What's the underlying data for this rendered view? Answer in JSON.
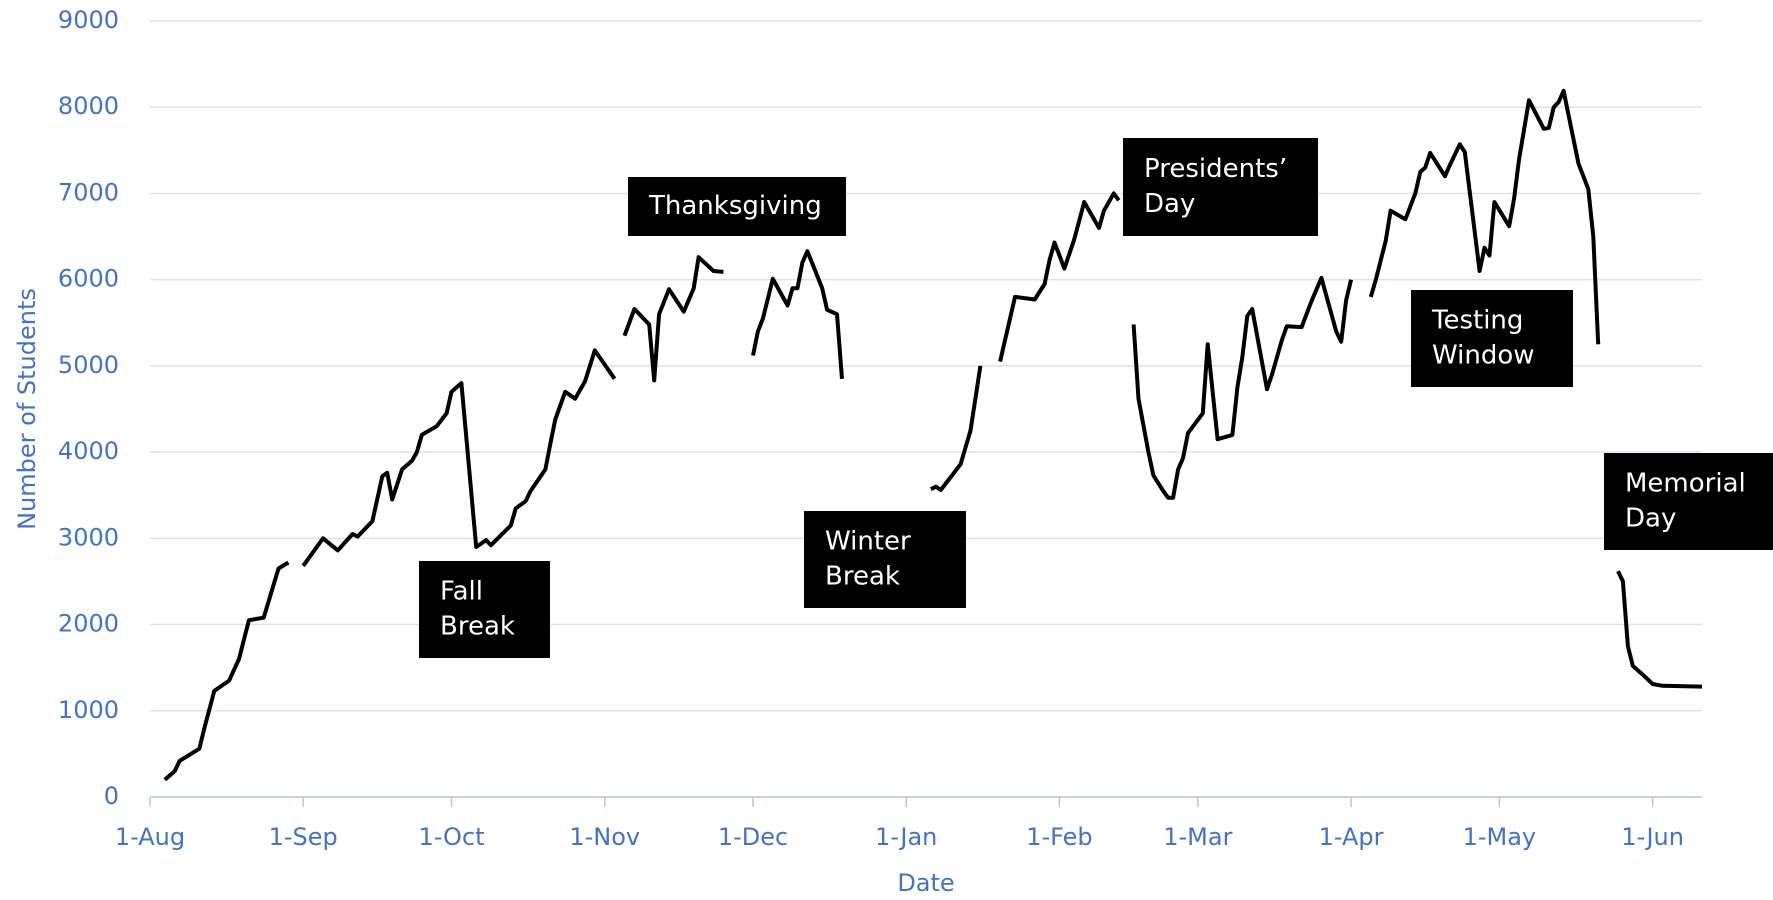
{
  "chart_data": {
    "type": "line",
    "x_label": "Date",
    "y_label": "Number of Students",
    "xlim": [
      "1-Aug",
      "11-Jun"
    ],
    "xticks": [
      "1-Aug",
      "1-Sep",
      "1-Oct",
      "1-Nov",
      "1-Dec",
      "1-Jan",
      "1-Feb",
      "1-Mar",
      "1-Apr",
      "1-May",
      "1-Jun"
    ],
    "ylim": [
      0,
      9000
    ],
    "yticks": [
      0,
      1000,
      2000,
      3000,
      4000,
      5000,
      6000,
      7000,
      8000,
      9000
    ],
    "grid": true,
    "x": [
      "4-Aug",
      "6-Aug",
      "7-Aug",
      "11-Aug",
      "12-Aug",
      "14-Aug",
      "17-Aug",
      "19-Aug",
      "21-Aug",
      "24-Aug",
      "27-Aug",
      "29-Aug",
      null,
      "1-Sep",
      "4-Sep",
      "5-Sep",
      "8-Sep",
      "11-Sep",
      "12-Sep",
      "15-Sep",
      "17-Sep",
      "18-Sep",
      "19-Sep",
      "21-Sep",
      "23-Sep",
      "24-Sep",
      "25-Sep",
      "28-Sep",
      "30-Sep",
      "1-Oct",
      "3-Oct",
      "6-Oct",
      "8-Oct",
      "9-Oct",
      "13-Oct",
      "14-Oct",
      "16-Oct",
      "17-Oct",
      "20-Oct",
      "21-Oct",
      "22-Oct",
      "24-Oct",
      "26-Oct",
      "28-Oct",
      "30-Oct",
      "3-Nov",
      null,
      "5-Nov",
      "7-Nov",
      "10-Nov",
      "11-Nov",
      "12-Nov",
      "14-Nov",
      "17-Nov",
      "19-Nov",
      "20-Nov",
      "23-Nov",
      "25-Nov",
      null,
      "1-Dec",
      "2-Dec",
      "3-Dec",
      "5-Dec",
      "8-Dec",
      "9-Dec",
      "10-Dec",
      "11-Dec",
      "12-Dec",
      "15-Dec",
      "16-Dec",
      "18-Dec",
      "19-Dec",
      null,
      "6-Jan",
      "7-Jan",
      "8-Jan",
      "12-Jan",
      "14-Jan",
      "15-Jan",
      "16-Jan",
      null,
      "20-Jan",
      "23-Jan",
      "27-Jan",
      "29-Jan",
      "30-Jan",
      "31-Jan",
      "2-Feb",
      "4-Feb",
      "6-Feb",
      "9-Feb",
      "10-Feb",
      "12-Feb",
      "13-Feb",
      null,
      "16-Feb",
      "17-Feb",
      "19-Feb",
      "20-Feb",
      "22-Feb",
      "23-Feb",
      "24-Feb",
      "25-Feb",
      "26-Feb",
      "27-Feb",
      "2-Mar",
      "3-Mar",
      "5-Mar",
      "8-Mar",
      "9-Mar",
      "10-Mar",
      "11-Mar",
      "12-Mar",
      "15-Mar",
      "16-Mar",
      "18-Mar",
      "19-Mar",
      "22-Mar",
      "24-Mar",
      "26-Mar",
      "29-Mar",
      "30-Mar",
      "31-Mar",
      "1-Apr",
      null,
      "5-Apr",
      "6-Apr",
      "8-Apr",
      "9-Apr",
      "12-Apr",
      "14-Apr",
      "15-Apr",
      "16-Apr",
      "17-Apr",
      "20-Apr",
      "21-Apr",
      "23-Apr",
      "24-Apr",
      "27-Apr",
      "28-Apr",
      "29-Apr",
      "30-Apr",
      "3-May",
      "4-May",
      "5-May",
      "7-May",
      "10-May",
      "11-May",
      "12-May",
      "13-May",
      "14-May",
      "17-May",
      "19-May",
      "20-May",
      "21-May",
      null,
      "25-May",
      "26-May",
      "27-May",
      "28-May",
      "30-May",
      "1-Jun",
      "3-Jun",
      "11-Jun"
    ],
    "series": [
      {
        "name": "Students",
        "color": "#000000",
        "values": [
          200,
          300,
          420,
          560,
          800,
          1230,
          1350,
          1600,
          2050,
          2080,
          2650,
          2720,
          null,
          2680,
          2920,
          3000,
          2860,
          3050,
          3020,
          3200,
          3720,
          3760,
          3450,
          3800,
          3900,
          4000,
          4200,
          4300,
          4450,
          4700,
          4800,
          2900,
          2980,
          2920,
          3150,
          3350,
          3430,
          3550,
          3800,
          4100,
          4380,
          4700,
          4620,
          4820,
          5180,
          4850,
          null,
          5350,
          5660,
          5480,
          4830,
          5600,
          5890,
          5630,
          5900,
          6260,
          6100,
          6090,
          null,
          5120,
          5400,
          5550,
          6010,
          5700,
          5900,
          5900,
          6200,
          6330,
          5900,
          5650,
          5600,
          4850,
          null,
          3570,
          3600,
          3560,
          3860,
          4250,
          4620,
          5000,
          null,
          5050,
          5800,
          5770,
          5950,
          6230,
          6430,
          6130,
          6470,
          6900,
          6600,
          6800,
          7000,
          6920,
          null,
          5480,
          4620,
          4000,
          3730,
          3550,
          3470,
          3470,
          3800,
          3930,
          4220,
          4450,
          5250,
          4150,
          4200,
          4750,
          5100,
          5580,
          5660,
          4730,
          4900,
          5300,
          5460,
          5450,
          5750,
          6020,
          5400,
          5280,
          5760,
          6000,
          null,
          5800,
          6000,
          6450,
          6800,
          6700,
          7000,
          7250,
          7300,
          7470,
          7200,
          7330,
          7570,
          7480,
          6100,
          6370,
          6280,
          6900,
          6620,
          6950,
          7400,
          8080,
          7750,
          7760,
          8000,
          8060,
          8190,
          7350,
          7050,
          6500,
          5250,
          null,
          2620,
          2500,
          1750,
          1520,
          1420,
          1310,
          1290,
          1280
        ]
      }
    ],
    "annotations": [
      {
        "lines": [
          "Fall",
          "Break"
        ]
      },
      {
        "lines": [
          "Thanksgiving"
        ]
      },
      {
        "lines": [
          "Winter",
          "Break"
        ]
      },
      {
        "lines": [
          "Presidents’",
          "Day"
        ]
      },
      {
        "lines": [
          "Testing",
          "Window"
        ]
      },
      {
        "lines": [
          "Memorial",
          "Day"
        ]
      }
    ]
  }
}
